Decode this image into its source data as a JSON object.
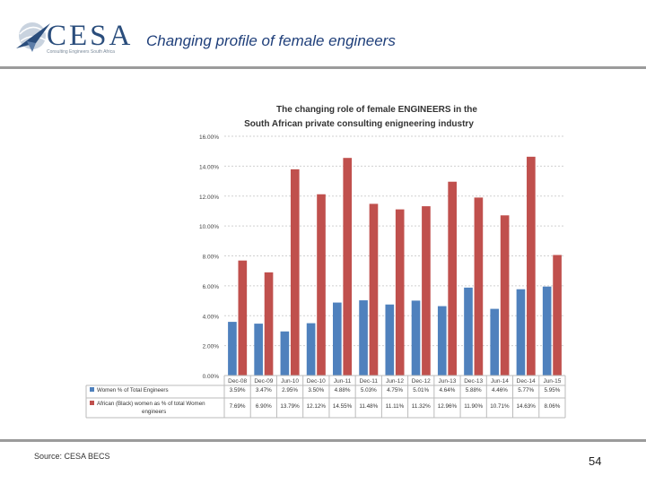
{
  "slide": {
    "title": "Changing profile of female engineers",
    "source": "Source: CESA BECS",
    "page_number": "54"
  },
  "logo": {
    "name": "CESA",
    "tagline": "Consulting Engineers South Africa"
  },
  "colors": {
    "series_total": "#4f81bd",
    "series_african": "#c0504d",
    "title_blue": "#1f3f7a"
  },
  "chart_data": {
    "type": "bar",
    "title_line1": "The changing role of female ENGINEERS in  the",
    "title_line2": "South African private consulting enigneering industry",
    "categories": [
      "Dec-08",
      "Dec-09",
      "Jun-10",
      "Dec-10",
      "Jun-11",
      "Dec-11",
      "Jun-12",
      "Dec-12",
      "Jun-13",
      "Dec-13",
      "Jun-14",
      "Dec-14",
      "Jun-15"
    ],
    "ylim": [
      0,
      16
    ],
    "yticks": [
      "0.00%",
      "2.00%",
      "4.00%",
      "6.00%",
      "8.00%",
      "10.00%",
      "12.00%",
      "14.00%",
      "16.00%"
    ],
    "series": [
      {
        "name": "Women % of Total Engineers",
        "values": [
          3.59,
          3.47,
          2.95,
          3.5,
          4.88,
          5.03,
          4.75,
          5.01,
          4.64,
          5.88,
          4.46,
          5.77,
          5.95
        ],
        "labels": [
          "3.59%",
          "3.47%",
          "2.95%",
          "3.50%",
          "4.88%",
          "5.03%",
          "4.75%",
          "5.01%",
          "4.64%",
          "5.88%",
          "4.46%",
          "5.77%",
          "5.95%"
        ]
      },
      {
        "name": "African (Black) women as % of total Women engineers",
        "values": [
          7.69,
          6.9,
          13.79,
          12.12,
          14.55,
          11.48,
          11.11,
          11.32,
          12.96,
          11.9,
          10.71,
          14.63,
          8.06
        ],
        "labels": [
          "7.69%",
          "6.90%",
          "13.79%",
          "12.12%",
          "14.55%",
          "11.48%",
          "11.11%",
          "11.32%",
          "12.96%",
          "11.90%",
          "10.71%",
          "14.63%",
          "8.06%"
        ]
      }
    ]
  }
}
